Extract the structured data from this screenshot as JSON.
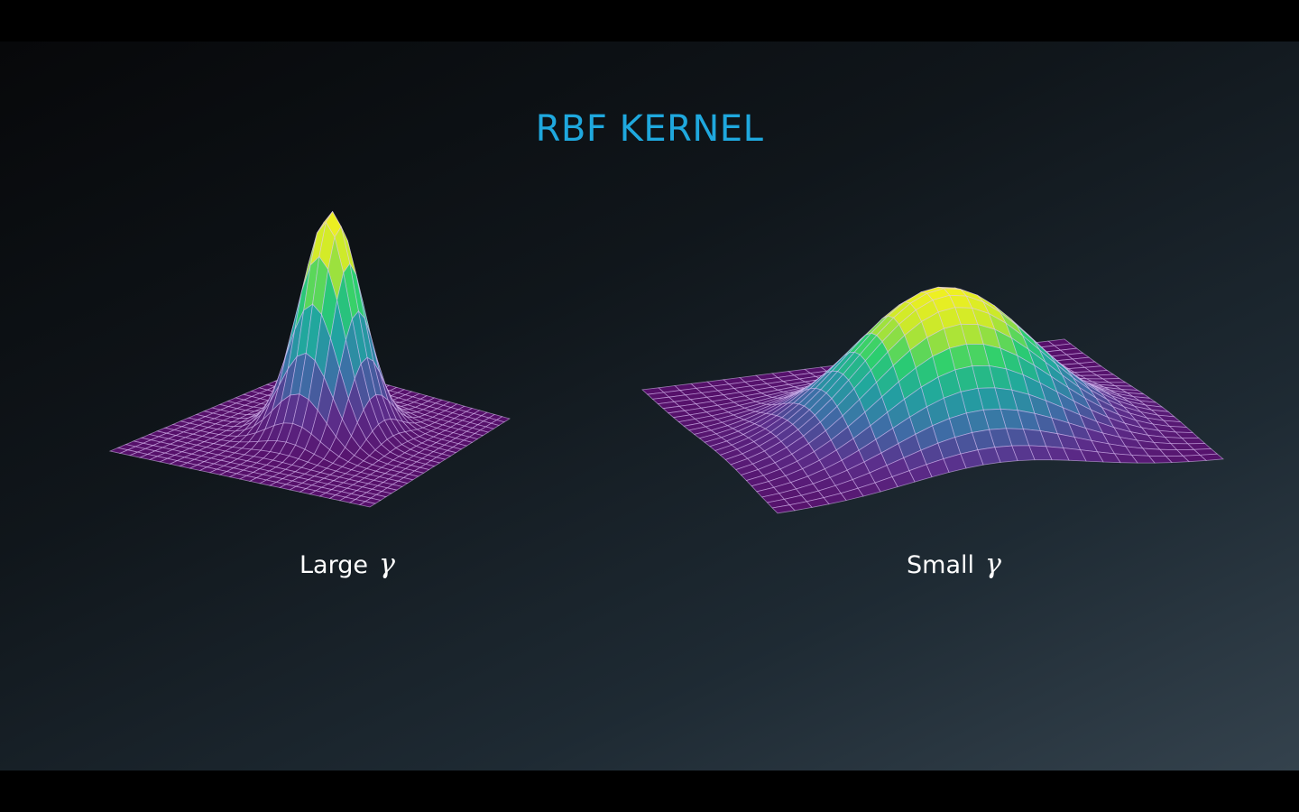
{
  "slide": {
    "title": "RBF KERNEL"
  },
  "plots": {
    "left": {
      "label": "Large",
      "symbol": "γ",
      "gamma_relative": "large",
      "peak_height": 1.0
    },
    "right": {
      "label": "Small",
      "symbol": "γ",
      "gamma_relative": "small",
      "peak_height": 1.0
    }
  },
  "colors": {
    "title": "#1fa8de",
    "caption": "#ffffff",
    "colormap": [
      "#56106a",
      "#5b2f8c",
      "#3d6fa6",
      "#20a4a0",
      "#2ccf6e",
      "#c5e82c",
      "#f0f020"
    ]
  }
}
